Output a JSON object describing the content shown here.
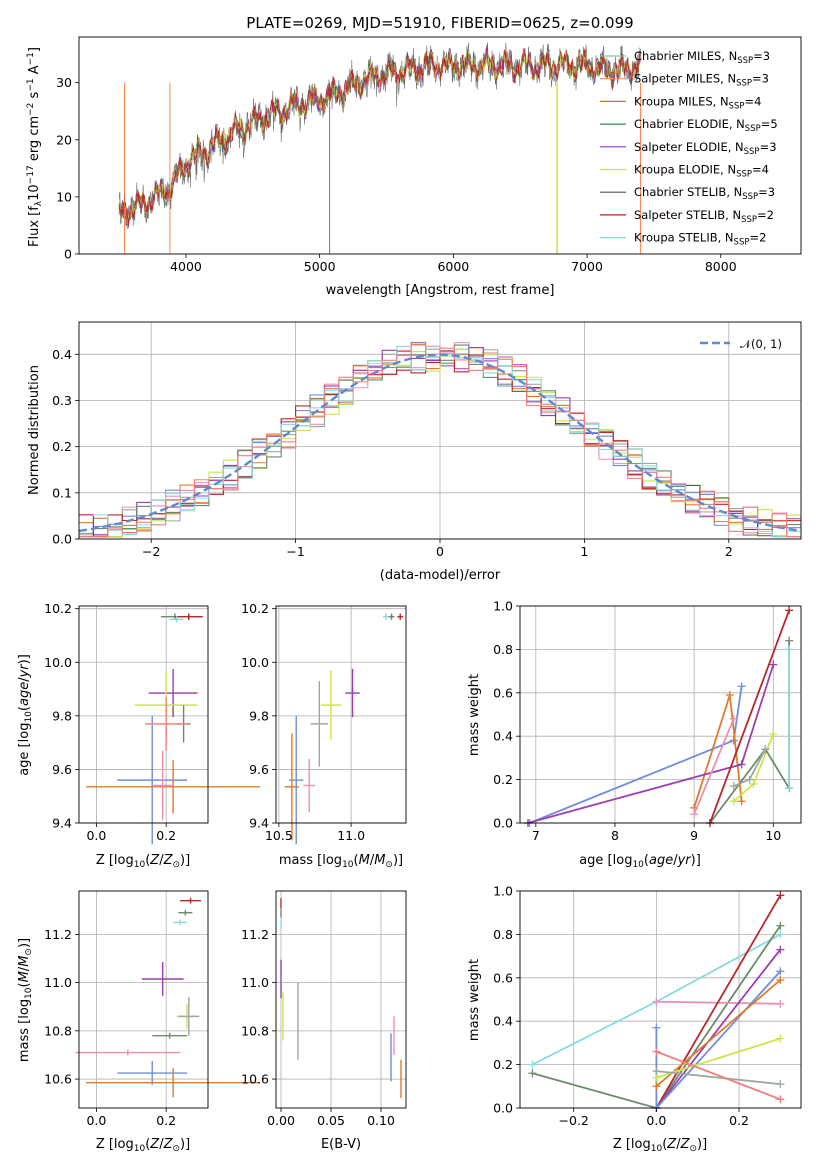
{
  "figure_title": "PLATE=0269, MJD=51910, FIBERID=0625, z=0.099",
  "colors": {
    "spectrum_models": [
      "#7fc6a4",
      "#ff8c5a",
      "#b8860b",
      "#2e8b57",
      "#9932cc",
      "#d4e157",
      "#555555",
      "#b22222",
      "#7fd8e0"
    ],
    "hist": [
      "#6f8fdc",
      "#e07b2a",
      "#e890b8",
      "#9da8a0",
      "#9b3fb0",
      "#c8e84a",
      "#6e8b6e",
      "#b8282b",
      "#8adbe0",
      "#f08080"
    ],
    "normal_curve": "#5b8bd0"
  },
  "chart_data": [
    {
      "id": "spectrum",
      "type": "line",
      "title": "PLATE=0269, MJD=51910, FIBERID=0625, z=0.099",
      "xlabel": "wavelength [Angstrom, rest frame]",
      "ylabel": "Flux [f_λ10^-17 erg cm^-2 s^-1 A^-1]",
      "xlim": [
        3200,
        8600
      ],
      "ylim": [
        0,
        38
      ],
      "xticks": [
        4000,
        5000,
        6000,
        7000,
        8000
      ],
      "yticks": [
        0,
        10,
        20,
        30
      ],
      "legend_position": "top-right",
      "series": [
        {
          "name": "Chabrier MILES, N_SSP=3"
        },
        {
          "name": "Salpeter MILES, N_SSP=3"
        },
        {
          "name": "Kroupa MILES, N_SSP=4"
        },
        {
          "name": "Chabrier ELODIE, N_SSP=5"
        },
        {
          "name": "Salpeter ELODIE, N_SSP=3"
        },
        {
          "name": "Kroupa ELODIE, N_SSP=4"
        },
        {
          "name": "Chabrier STELIB, N_SSP=3"
        },
        {
          "name": "Salpeter STELIB, N_SSP=2"
        },
        {
          "name": "Kroupa STELIB, N_SSP=2"
        }
      ],
      "observed_range": [
        3500,
        7400
      ],
      "continuum": [
        [
          3500,
          7
        ],
        [
          3700,
          9
        ],
        [
          3900,
          12
        ],
        [
          4000,
          16
        ],
        [
          4200,
          19
        ],
        [
          4400,
          22
        ],
        [
          4600,
          24
        ],
        [
          4800,
          26
        ],
        [
          5000,
          27
        ],
        [
          5200,
          29
        ],
        [
          5400,
          31
        ],
        [
          5600,
          32
        ],
        [
          5800,
          33
        ],
        [
          6000,
          33
        ],
        [
          6200,
          33
        ],
        [
          6400,
          33
        ],
        [
          6600,
          33
        ],
        [
          6800,
          33
        ],
        [
          7000,
          33
        ],
        [
          7200,
          32
        ],
        [
          7400,
          33
        ]
      ]
    },
    {
      "id": "residuals",
      "type": "histogram",
      "xlabel": "(data-model)/error",
      "ylabel": "Normed distribution",
      "xlim": [
        -2.5,
        2.5
      ],
      "ylim": [
        0,
        0.47
      ],
      "xticks": [
        -2,
        -1,
        0,
        1,
        2
      ],
      "xtick_labels": [
        "−2",
        "−1",
        "0",
        "1",
        "2"
      ],
      "yticks": [
        0.0,
        0.1,
        0.2,
        0.3,
        0.4
      ],
      "ytick_labels": [
        "0.0",
        "0.1",
        "0.2",
        "0.3",
        "0.4"
      ],
      "legend_position": "top-right",
      "series_legend": "𝒩(0, 1)",
      "bin_width": 0.1,
      "n_histograms": 10
    },
    {
      "id": "age_vs_Z",
      "type": "scatter",
      "xlabel": "Z [log10(Z/Z⊙)]",
      "ylabel": "age  [log10(age/yr)]",
      "xlim": [
        -0.05,
        0.32
      ],
      "ylim": [
        9.4,
        10.21
      ],
      "xticks": [
        0.0,
        0.2
      ],
      "xtick_labels": [
        "0.0",
        "0.2"
      ],
      "yticks": [
        9.4,
        9.6,
        9.8,
        10.0,
        10.2
      ],
      "ytick_labels": [
        "9.4",
        "9.6",
        "9.8",
        "10.0",
        "10.2"
      ],
      "points": [
        {
          "x": 0.16,
          "xerr": 0.1,
          "y": 9.56,
          "yerr": 0.24,
          "c": 0
        },
        {
          "x": 0.22,
          "xerr": 0.25,
          "y": 9.535,
          "yerr": 0.1,
          "c": 1
        },
        {
          "x": 0.19,
          "xerr": 0.03,
          "y": 9.54,
          "yerr": 0.13,
          "c": 2
        },
        {
          "x": 0.265,
          "xerr": 0.04,
          "y": 10.17,
          "yerr": 0.0,
          "c": 3
        },
        {
          "x": 0.22,
          "xerr": 0.07,
          "y": 9.885,
          "yerr": 0.09,
          "c": 4
        },
        {
          "x": 0.2,
          "xerr": 0.09,
          "y": 9.84,
          "yerr": 0.13,
          "c": 5
        },
        {
          "x": 0.225,
          "xerr": 0.04,
          "y": 10.17,
          "yerr": 0.0,
          "c": 6
        },
        {
          "x": 0.265,
          "xerr": 0.04,
          "y": 10.17,
          "yerr": 0.0,
          "c": 7
        },
        {
          "x": 0.23,
          "xerr": 0.02,
          "y": 10.16,
          "yerr": 0.0,
          "c": 8
        },
        {
          "x": 0.25,
          "xerr": 0.02,
          "y": 9.77,
          "yerr": 0.07,
          "c": 6
        },
        {
          "x": 0.2,
          "xerr": 0.06,
          "y": 9.77,
          "yerr": 0.1,
          "c": 9
        }
      ]
    },
    {
      "id": "age_vs_mass",
      "type": "scatter",
      "xlabel": "mass [log10(M/M⊙)]",
      "ylabel": "",
      "xlim": [
        10.48,
        11.38
      ],
      "ylim": [
        9.4,
        10.21
      ],
      "xticks": [
        10.5,
        11.0
      ],
      "xtick_labels": [
        "10.5",
        "11.0"
      ],
      "yticks": [
        9.4,
        9.6,
        9.8,
        10.0,
        10.2
      ],
      "ytick_labels": [
        "9.4",
        "9.6",
        "9.8",
        "10.0",
        "10.2"
      ],
      "points": [
        {
          "x": 10.62,
          "xerr": 0.05,
          "y": 9.56,
          "yerr": 0.24,
          "c": 0
        },
        {
          "x": 10.59,
          "xerr": 0.05,
          "y": 9.535,
          "yerr": 0.2,
          "c": 1
        },
        {
          "x": 10.71,
          "xerr": 0.04,
          "y": 9.54,
          "yerr": 0.1,
          "c": 2
        },
        {
          "x": 11.01,
          "xerr": 0.05,
          "y": 9.885,
          "yerr": 0.09,
          "c": 4
        },
        {
          "x": 10.86,
          "xerr": 0.07,
          "y": 9.84,
          "yerr": 0.13,
          "c": 5
        },
        {
          "x": 10.78,
          "xerr": 0.06,
          "y": 9.77,
          "yerr": 0.16,
          "c": 3
        },
        {
          "x": 11.28,
          "xerr": 0.02,
          "y": 10.17,
          "yerr": 0.0,
          "c": 6
        },
        {
          "x": 11.34,
          "xerr": 0.02,
          "y": 10.17,
          "yerr": 0.0,
          "c": 7
        },
        {
          "x": 11.24,
          "xerr": 0.02,
          "y": 10.17,
          "yerr": 0.0,
          "c": 8
        }
      ]
    },
    {
      "id": "weight_vs_age",
      "type": "line",
      "xlabel": "age  [log10(age/yr)]",
      "ylabel": "mass weight",
      "xlim": [
        6.8,
        10.35
      ],
      "ylim": [
        0,
        1.0
      ],
      "xticks": [
        7,
        8,
        9,
        10
      ],
      "xtick_labels": [
        "7",
        "8",
        "9",
        "10"
      ],
      "yticks": [
        0.0,
        0.2,
        0.4,
        0.6,
        0.8,
        1.0
      ],
      "ytick_labels": [
        "0.0",
        "0.2",
        "0.4",
        "0.6",
        "0.8",
        "1.0"
      ],
      "series": [
        {
          "c": 0,
          "pts": [
            [
              6.92,
              0.0
            ],
            [
              9.5,
              0.38
            ],
            [
              9.6,
              0.63
            ]
          ]
        },
        {
          "c": 1,
          "pts": [
            [
              9.0,
              0.07
            ],
            [
              9.45,
              0.59
            ],
            [
              9.6,
              0.1
            ]
          ]
        },
        {
          "c": 4,
          "pts": [
            [
              6.9,
              0.0
            ],
            [
              9.6,
              0.27
            ],
            [
              10.0,
              0.73
            ]
          ]
        },
        {
          "c": 2,
          "pts": [
            [
              9.0,
              0.04
            ],
            [
              9.5,
              0.48
            ]
          ]
        },
        {
          "c": 5,
          "pts": [
            [
              9.5,
              0.1
            ],
            [
              9.75,
              0.18
            ],
            [
              10.0,
              0.41
            ]
          ]
        },
        {
          "c": 6,
          "pts": [
            [
              9.2,
              0.0
            ],
            [
              9.9,
              0.34
            ],
            [
              10.2,
              0.16
            ],
            [
              10.2,
              0.84
            ]
          ]
        },
        {
          "c": 7,
          "pts": [
            [
              9.2,
              0.0
            ],
            [
              10.2,
              0.98
            ]
          ]
        },
        {
          "c": 8,
          "pts": [
            [
              10.2,
              0.16
            ],
            [
              10.2,
              0.8
            ]
          ]
        },
        {
          "c": 3,
          "pts": [
            [
              9.5,
              0.17
            ],
            [
              9.7,
              0.2
            ],
            [
              9.9,
              0.34
            ]
          ]
        }
      ]
    },
    {
      "id": "mass_vs_Z",
      "type": "scatter",
      "xlabel": "Z [log10(Z/Z⊙)]",
      "ylabel": "mass [log10(M/M⊙)]",
      "xlim": [
        -0.05,
        0.32
      ],
      "ylim": [
        10.48,
        11.38
      ],
      "xticks": [
        0.0,
        0.2
      ],
      "xtick_labels": [
        "0.0",
        "0.2"
      ],
      "yticks": [
        10.6,
        10.8,
        11.0,
        11.2
      ],
      "ytick_labels": [
        "10.6",
        "10.8",
        "11.0",
        "11.2"
      ],
      "points": [
        {
          "x": 0.16,
          "xerr": 0.1,
          "y": 10.625,
          "yerr": 0.05,
          "c": 0
        },
        {
          "x": 0.22,
          "xerr": 0.25,
          "y": 10.585,
          "yerr": 0.06,
          "c": 1
        },
        {
          "x": 0.09,
          "xerr": 0.15,
          "y": 10.71,
          "yerr": 0.0,
          "c": 2
        },
        {
          "x": 0.26,
          "xerr": 0.03,
          "y": 10.86,
          "yerr": 0.05,
          "c": 5
        },
        {
          "x": 0.19,
          "xerr": 0.06,
          "y": 11.015,
          "yerr": 0.07,
          "c": 4
        },
        {
          "x": 0.265,
          "xerr": 0.03,
          "y": 10.86,
          "yerr": 0.08,
          "c": 3
        },
        {
          "x": 0.21,
          "xerr": 0.05,
          "y": 10.78,
          "yerr": 0.0,
          "c": 6
        },
        {
          "x": 0.27,
          "xerr": 0.03,
          "y": 11.34,
          "yerr": 0.0,
          "c": 7
        },
        {
          "x": 0.255,
          "xerr": 0.02,
          "y": 11.29,
          "yerr": 0.0,
          "c": 6
        },
        {
          "x": 0.24,
          "xerr": 0.02,
          "y": 11.25,
          "yerr": 0.0,
          "c": 8
        }
      ]
    },
    {
      "id": "mass_vs_ebv",
      "type": "scatter",
      "xlabel": "E(B-V)",
      "ylabel": "",
      "xlim": [
        -0.005,
        0.125
      ],
      "ylim": [
        10.48,
        11.38
      ],
      "xticks": [
        0.0,
        0.05,
        0.1
      ],
      "xtick_labels": [
        "0.00",
        "0.05",
        "0.10"
      ],
      "yticks": [
        10.6,
        10.8,
        11.0,
        11.2
      ],
      "ytick_labels": [
        "10.6",
        "10.8",
        "11.0",
        "11.2"
      ],
      "points": [
        {
          "x": 0.11,
          "y": 10.69,
          "yerr": 0.1,
          "c": 0
        },
        {
          "x": 0.12,
          "y": 10.6,
          "yerr": 0.08,
          "c": 1
        },
        {
          "x": 0.113,
          "y": 10.78,
          "yerr": 0.08,
          "c": 2
        },
        {
          "x": 0.0,
          "y": 11.015,
          "yerr": 0.08,
          "c": 4
        },
        {
          "x": 0.002,
          "y": 10.86,
          "yerr": 0.1,
          "c": 5
        },
        {
          "x": 0.017,
          "y": 10.84,
          "yerr": 0.16,
          "c": 3
        },
        {
          "x": 0.0,
          "y": 11.29,
          "yerr": 0.02,
          "c": 6
        },
        {
          "x": 0.0,
          "y": 11.33,
          "yerr": 0.02,
          "c": 7
        },
        {
          "x": 0.0,
          "y": 11.24,
          "yerr": 0.02,
          "c": 8
        }
      ]
    },
    {
      "id": "weight_vs_Z",
      "type": "line",
      "xlabel": "Z [log10(Z/Z⊙)]",
      "ylabel": "mass weight",
      "xlim": [
        -0.33,
        0.35
      ],
      "ylim": [
        0,
        1.0
      ],
      "xticks": [
        -0.2,
        0.0,
        0.2
      ],
      "xtick_labels": [
        "−0.2",
        "0.0",
        "0.2"
      ],
      "yticks": [
        0.0,
        0.2,
        0.4,
        0.6,
        0.8,
        1.0
      ],
      "ytick_labels": [
        "0.0",
        "0.2",
        "0.4",
        "0.6",
        "0.8",
        "1.0"
      ],
      "series": [
        {
          "c": 8,
          "pts": [
            [
              -0.3,
              0.2
            ],
            [
              0.0,
              0.49
            ],
            [
              0.3,
              0.8
            ]
          ]
        },
        {
          "c": 6,
          "pts": [
            [
              -0.3,
              0.16
            ],
            [
              0.0,
              0.0
            ],
            [
              0.3,
              0.84
            ]
          ]
        },
        {
          "c": 2,
          "pts": [
            [
              0.0,
              0.49
            ],
            [
              0.3,
              0.48
            ]
          ]
        },
        {
          "c": 7,
          "pts": [
            [
              0.0,
              0.0
            ],
            [
              0.3,
              0.98
            ]
          ]
        },
        {
          "c": 4,
          "pts": [
            [
              0.0,
              0.0
            ],
            [
              0.3,
              0.73
            ]
          ]
        },
        {
          "c": 0,
          "pts": [
            [
              0.0,
              0.37
            ],
            [
              0.0,
              0.0
            ],
            [
              0.3,
              0.63
            ]
          ]
        },
        {
          "c": 1,
          "pts": [
            [
              0.0,
              0.1
            ],
            [
              0.3,
              0.59
            ]
          ]
        },
        {
          "c": 5,
          "pts": [
            [
              0.0,
              0.14
            ],
            [
              0.3,
              0.32
            ]
          ]
        },
        {
          "c": 3,
          "pts": [
            [
              0.0,
              0.17
            ],
            [
              0.3,
              0.11
            ]
          ]
        },
        {
          "c": 9,
          "pts": [
            [
              0.0,
              0.26
            ],
            [
              0.3,
              0.04
            ]
          ]
        }
      ]
    }
  ]
}
